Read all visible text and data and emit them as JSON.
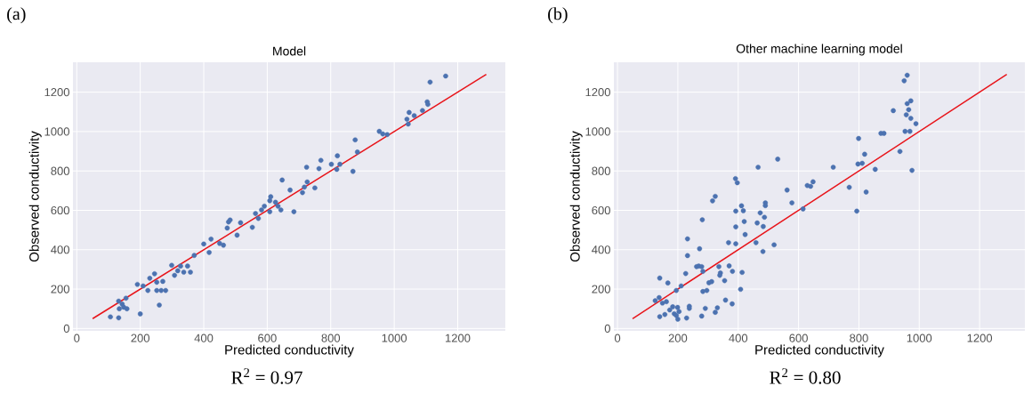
{
  "chart_data": [
    {
      "type": "scatter",
      "title": "Model",
      "xlabel": "Predicted conductivity",
      "ylabel": "Observed conductivity",
      "xlim": [
        -12,
        1350
      ],
      "ylim": [
        -12,
        1352
      ],
      "xticks": [
        0,
        200,
        400,
        600,
        800,
        1000,
        1200
      ],
      "yticks": [
        0,
        200,
        400,
        600,
        800,
        1000,
        1200
      ],
      "grid": true,
      "marker": "circle",
      "annotations": [
        "(a)",
        "R$^{2}$ = 0.97"
      ],
      "series": [
        {
          "type": "scatter",
          "color": "#4c72b0",
          "x": [
            106,
            132,
            134,
            143,
            155,
            148,
            158,
            132,
            200,
            191,
            209,
            224,
            230,
            245,
            252,
            271,
            252,
            266,
            280,
            260,
            299,
            308,
            318,
            327,
            349,
            337,
            358,
            370,
            400,
            417,
            423,
            450,
            462,
            474,
            478,
            483,
            505,
            516,
            553,
            563,
            572,
            582,
            591,
            608,
            608,
            611,
            626,
            634,
            643,
            647,
            672,
            684,
            711,
            717,
            726,
            724,
            750,
            763,
            769,
            802,
            821,
            819,
            829,
            870,
            877,
            884,
            953,
            964,
            978,
            1040,
            1044,
            1047,
            1063,
            1089,
            1104,
            1106,
            1113,
            1162
          ],
          "values": [
            59,
            54,
            100,
            124,
            154,
            108,
            100,
            139,
            74,
            224,
            216,
            193,
            255,
            278,
            235,
            239,
            193,
            193,
            193,
            119,
            321,
            270,
            293,
            317,
            317,
            286,
            286,
            371,
            429,
            386,
            454,
            432,
            423,
            510,
            541,
            551,
            474,
            537,
            514,
            584,
            559,
            602,
            621,
            593,
            649,
            669,
            641,
            621,
            602,
            754,
            703,
            593,
            690,
            718,
            744,
            819,
            714,
            812,
            854,
            834,
            877,
            808,
            834,
            798,
            958,
            896,
            1001,
            988,
            985,
            1063,
            1038,
            1097,
            1081,
            1107,
            1151,
            1138,
            1251,
            1282
          ]
        },
        {
          "type": "line",
          "marker": "none",
          "color": "#e8141a",
          "line_style": "solid",
          "x": [
            50,
            1290
          ],
          "values": [
            50,
            1290
          ]
        }
      ]
    },
    {
      "type": "scatter",
      "title": "Other machine learning model",
      "xlabel": "Predicted conductivity",
      "ylabel": "Observed conductivity",
      "xlim": [
        -12,
        1350
      ],
      "ylim": [
        -12,
        1352
      ],
      "xticks": [
        0,
        200,
        400,
        600,
        800,
        1000,
        1200
      ],
      "yticks": [
        0,
        200,
        400,
        600,
        800,
        1000,
        1200
      ],
      "grid": true,
      "marker": "circle",
      "annotations": [
        "(b)",
        "R$^{2}$ = 0.80"
      ],
      "series": [
        {
          "type": "scatter",
          "color": "#4c72b0",
          "x": [
            960,
            950,
            960,
            972,
            965,
            957,
            972,
            989,
            914,
            953,
            969,
            873,
            883,
            799,
            936,
            819,
            797,
            811,
            854,
            976,
            715,
            768,
            824,
            793,
            629,
            648,
            640,
            531,
            466,
            562,
            578,
            615,
            391,
            397,
            315,
            324,
            411,
            417,
            392,
            420,
            392,
            423,
            368,
            392,
            473,
            490,
            490,
            487,
            463,
            483,
            459,
            519,
            482,
            281,
            232,
            232,
            272,
            226,
            262,
            269,
            279,
            283,
            336,
            341,
            370,
            381,
            413,
            339,
            355,
            303,
            312,
            283,
            296,
            408,
            140,
            167,
            195,
            211,
            125,
            138,
            149,
            162,
            173,
            183,
            199,
            204,
            188,
            195,
            200,
            140,
            157,
            229,
            238,
            238,
            279,
            291,
            324,
            331,
            358,
            380
          ],
          "values": [
            1286,
            1258,
            1142,
            1156,
            1111,
            1085,
            1067,
            1040,
            1106,
            1001,
            1001,
            991,
            991,
            965,
            899,
            885,
            835,
            839,
            808,
            803,
            819,
            717,
            693,
            596,
            726,
            745,
            722,
            860,
            819,
            703,
            638,
            607,
            761,
            740,
            648,
            671,
            623,
            598,
            596,
            543,
            516,
            477,
            436,
            430,
            587,
            638,
            624,
            565,
            536,
            518,
            436,
            425,
            391,
            552,
            455,
            370,
            405,
            279,
            314,
            317,
            314,
            290,
            314,
            282,
            318,
            290,
            285,
            270,
            243,
            232,
            238,
            188,
            193,
            199,
            256,
            231,
            193,
            216,
            141,
            157,
            129,
            136,
            94,
            110,
            107,
            86,
            75,
            66,
            47,
            60,
            71,
            53,
            113,
            102,
            63,
            102,
            82,
            105,
            144,
            125
          ]
        },
        {
          "type": "line",
          "marker": "none",
          "color": "#e8141a",
          "line_style": "solid",
          "x": [
            50,
            1290
          ],
          "values": [
            50,
            1290
          ]
        }
      ]
    }
  ]
}
